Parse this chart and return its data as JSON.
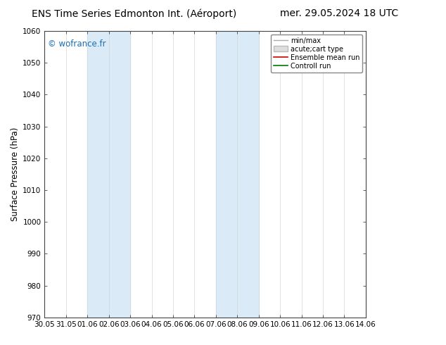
{
  "title_left": "ENS Time Series Edmonton Int. (Aéroport)",
  "title_right": "mer. 29.05.2024 18 UTC",
  "ylabel": "Surface Pressure (hPa)",
  "ylim": [
    970,
    1060
  ],
  "yticks": [
    970,
    980,
    990,
    1000,
    1010,
    1020,
    1030,
    1040,
    1050,
    1060
  ],
  "xlabels": [
    "30.05",
    "31.05",
    "01.06",
    "02.06",
    "03.06",
    "04.06",
    "05.06",
    "06.06",
    "07.06",
    "08.06",
    "09.06",
    "10.06",
    "11.06",
    "12.06",
    "13.06",
    "14.06"
  ],
  "xvalues": [
    0,
    1,
    2,
    3,
    4,
    5,
    6,
    7,
    8,
    9,
    10,
    11,
    12,
    13,
    14,
    15
  ],
  "background_color": "#ffffff",
  "plot_bg_color": "#ffffff",
  "band_color": "#daeaf7",
  "band_ranges": [
    [
      2,
      4
    ],
    [
      8,
      10
    ]
  ],
  "watermark": "© wofrance.fr",
  "legend_items": [
    {
      "label": "min/max",
      "color": "#aaaaaa",
      "lw": 1.2
    },
    {
      "label": "acute;cart type",
      "color": "#cccccc",
      "lw": 6
    },
    {
      "label": "Ensemble mean run",
      "color": "#cc0000",
      "lw": 1.2
    },
    {
      "label": "Controll run",
      "color": "#007700",
      "lw": 1.2
    }
  ],
  "title_fontsize": 10,
  "tick_fontsize": 7.5,
  "ylabel_fontsize": 8.5,
  "watermark_color": "#1a6eb5",
  "grid_color": "#cccccc",
  "spine_color": "#444444"
}
